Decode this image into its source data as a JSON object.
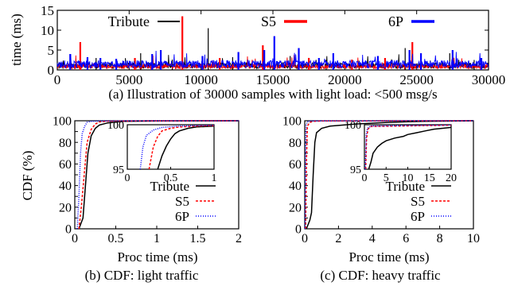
{
  "chart_data": [
    {
      "id": "a",
      "type": "line",
      "caption": "(a) Illustration of 30000 samples with light load: <500 msg/s",
      "ylabel": "time (ms)",
      "xlabel": "",
      "xlim": [
        0,
        30000
      ],
      "ylim": [
        0,
        15
      ],
      "xticks": [
        0,
        5000,
        10000,
        15000,
        20000,
        25000,
        30000
      ],
      "yticks": [
        0,
        5,
        10,
        15
      ],
      "grid": false,
      "legend_position": "top, horizontal",
      "series": [
        {
          "name": "Tribute",
          "color": "#000000",
          "baseline": 1.2,
          "spikes": [
            [
              2700,
              3.0
            ],
            [
              5800,
              4.2
            ],
            [
              8000,
              2.6
            ],
            [
              10500,
              10.5
            ],
            [
              12200,
              3.2
            ],
            [
              16200,
              3.5
            ],
            [
              18700,
              2.5
            ],
            [
              21000,
              2.3
            ],
            [
              24200,
              5.5
            ],
            [
              27300,
              4.2
            ],
            [
              29000,
              2.5
            ]
          ]
        },
        {
          "name": "S5",
          "color": "#ff0000",
          "baseline": 1.0,
          "spikes": [
            [
              1600,
              7.0
            ],
            [
              5400,
              3.0
            ],
            [
              8700,
              13.5
            ],
            [
              11300,
              3.0
            ],
            [
              14300,
              6.2
            ],
            [
              17500,
              3.0
            ],
            [
              20500,
              2.6
            ],
            [
              22800,
              3.0
            ],
            [
              24700,
              7.0
            ]
          ]
        },
        {
          "name": "6P",
          "color": "#0000ff",
          "baseline": 1.6,
          "spikes": [
            [
              900,
              4.0
            ],
            [
              2100,
              3.2
            ],
            [
              3000,
              3.0
            ],
            [
              4100,
              2.8
            ],
            [
              6600,
              4.0
            ],
            [
              7200,
              5.0
            ],
            [
              10100,
              3.5
            ],
            [
              12600,
              4.5
            ],
            [
              14400,
              5.0
            ],
            [
              15100,
              8.5
            ],
            [
              16800,
              5.5
            ],
            [
              18200,
              3.0
            ],
            [
              19200,
              4.2
            ],
            [
              22300,
              3.5
            ],
            [
              24500,
              5.0
            ],
            [
              25300,
              4.2
            ],
            [
              27500,
              5.0
            ],
            [
              29500,
              3.0
            ]
          ]
        }
      ]
    },
    {
      "id": "b",
      "type": "line",
      "caption": "(b) CDF: light traffic",
      "xlabel": "Proc time (ms)",
      "ylabel": "CDF (%)",
      "xlim": [
        0,
        2
      ],
      "ylim": [
        0,
        100
      ],
      "xticks": [
        0,
        0.5,
        1,
        1.5,
        2
      ],
      "yticks": [
        0,
        10,
        20,
        30,
        40,
        50,
        60,
        70,
        80,
        90,
        100
      ],
      "grid": false,
      "legend_position": "bottom-right",
      "series": [
        {
          "name": "Tribute",
          "color": "#000000",
          "dash": "solid",
          "points": [
            [
              0.05,
              0
            ],
            [
              0.1,
              10
            ],
            [
              0.13,
              40
            ],
            [
              0.16,
              70
            ],
            [
              0.2,
              86
            ],
            [
              0.25,
              93
            ],
            [
              0.3,
              96
            ],
            [
              0.4,
              98
            ],
            [
              0.6,
              99.4
            ],
            [
              1.0,
              99.8
            ],
            [
              2.0,
              100
            ]
          ]
        },
        {
          "name": "S5",
          "color": "#ff0000",
          "dash": "red-dashed",
          "points": [
            [
              0.05,
              0
            ],
            [
              0.08,
              20
            ],
            [
              0.12,
              55
            ],
            [
              0.15,
              80
            ],
            [
              0.2,
              92
            ],
            [
              0.25,
              97
            ],
            [
              0.3,
              99
            ],
            [
              0.4,
              99.6
            ],
            [
              1.0,
              99.9
            ],
            [
              2.0,
              100
            ]
          ]
        },
        {
          "name": "6P",
          "color": "#0000ff",
          "dash": "blue-dotted",
          "points": [
            [
              0.03,
              0
            ],
            [
              0.05,
              30
            ],
            [
              0.07,
              70
            ],
            [
              0.09,
              88
            ],
            [
              0.12,
              95
            ],
            [
              0.15,
              98.5
            ],
            [
              0.2,
              99.5
            ],
            [
              0.3,
              99.8
            ],
            [
              1.0,
              100
            ],
            [
              2.0,
              100
            ]
          ]
        }
      ],
      "inset": {
        "xlim": [
          0,
          1
        ],
        "ylim": [
          95,
          100
        ],
        "xticks": [
          0,
          0.5,
          1
        ],
        "yticks": [
          95,
          100
        ],
        "series": [
          {
            "name": "Tribute",
            "points": [
              [
                0.35,
                95
              ],
              [
                0.4,
                96.5
              ],
              [
                0.45,
                97.6
              ],
              [
                0.5,
                98.4
              ],
              [
                0.55,
                99
              ],
              [
                0.6,
                99.3
              ],
              [
                0.7,
                99.6
              ],
              [
                0.8,
                99.75
              ],
              [
                1.0,
                99.85
              ]
            ]
          },
          {
            "name": "S5",
            "points": [
              [
                0.25,
                95
              ],
              [
                0.3,
                97.5
              ],
              [
                0.35,
                98.7
              ],
              [
                0.4,
                99.3
              ],
              [
                0.5,
                99.6
              ],
              [
                0.6,
                99.75
              ],
              [
                0.8,
                99.85
              ],
              [
                1.0,
                99.9
              ]
            ]
          },
          {
            "name": "6P",
            "points": [
              [
                0.15,
                95
              ],
              [
                0.18,
                97.5
              ],
              [
                0.22,
                98.8
              ],
              [
                0.3,
                99.4
              ],
              [
                0.4,
                99.7
              ],
              [
                0.6,
                99.85
              ],
              [
                1.0,
                99.95
              ]
            ]
          }
        ]
      }
    },
    {
      "id": "c",
      "type": "line",
      "caption": "(c) CDF: heavy traffic",
      "xlabel": "Proc time (ms)",
      "ylabel": "",
      "xlim": [
        0,
        10
      ],
      "ylim": [
        0,
        100
      ],
      "xticks": [
        0,
        2,
        4,
        6,
        8,
        10
      ],
      "yticks": [
        0,
        10,
        20,
        30,
        40,
        50,
        60,
        70,
        80,
        90,
        100
      ],
      "grid": false,
      "legend_position": "bottom-right",
      "series": [
        {
          "name": "Tribute",
          "color": "#000000",
          "dash": "solid",
          "points": [
            [
              0.1,
              0
            ],
            [
              0.3,
              8
            ],
            [
              0.4,
              15
            ],
            [
              0.5,
              50
            ],
            [
              0.6,
              80
            ],
            [
              0.7,
              89
            ],
            [
              1.0,
              93
            ],
            [
              1.5,
              95
            ],
            [
              3,
              97
            ],
            [
              5,
              98.5
            ],
            [
              7,
              99.5
            ],
            [
              10,
              100
            ]
          ]
        },
        {
          "name": "S5",
          "color": "#ff0000",
          "dash": "red-dashed",
          "points": [
            [
              0.05,
              0
            ],
            [
              0.1,
              60
            ],
            [
              0.15,
              95
            ],
            [
              0.3,
              98.5
            ],
            [
              0.5,
              99.5
            ],
            [
              1,
              99.8
            ],
            [
              10,
              100
            ]
          ]
        },
        {
          "name": "6P",
          "color": "#0000ff",
          "dash": "blue-dotted",
          "points": [
            [
              0.02,
              0
            ],
            [
              0.05,
              70
            ],
            [
              0.08,
              96
            ],
            [
              0.15,
              99
            ],
            [
              0.3,
              99.7
            ],
            [
              1,
              99.9
            ],
            [
              10,
              100
            ]
          ]
        }
      ],
      "inset": {
        "xlim": [
          0,
          20
        ],
        "ylim": [
          95,
          100
        ],
        "xticks": [
          0,
          5,
          10,
          15,
          20
        ],
        "yticks": [
          95,
          100
        ],
        "series": [
          {
            "name": "Tribute",
            "points": [
              [
                1,
                95
              ],
              [
                1.5,
                95.8
              ],
              [
                2,
                96.8
              ],
              [
                3,
                97.5
              ],
              [
                4,
                97.9
              ],
              [
                5,
                98.2
              ],
              [
                7,
                98.5
              ],
              [
                9,
                98.7
              ],
              [
                10,
                98.9
              ],
              [
                12,
                99.1
              ],
              [
                14,
                99.3
              ],
              [
                16,
                99.5
              ],
              [
                18,
                99.6
              ],
              [
                20,
                99.7
              ]
            ]
          },
          {
            "name": "S5",
            "points": [
              [
                0.3,
                95
              ],
              [
                0.5,
                98.5
              ],
              [
                0.8,
                99.5
              ],
              [
                1.5,
                99.8
              ],
              [
                20,
                99.95
              ]
            ]
          },
          {
            "name": "6P",
            "points": [
              [
                0.2,
                95
              ],
              [
                0.4,
                98.8
              ],
              [
                0.7,
                99.6
              ],
              [
                1.5,
                99.85
              ],
              [
                20,
                99.98
              ]
            ]
          }
        ]
      }
    }
  ]
}
